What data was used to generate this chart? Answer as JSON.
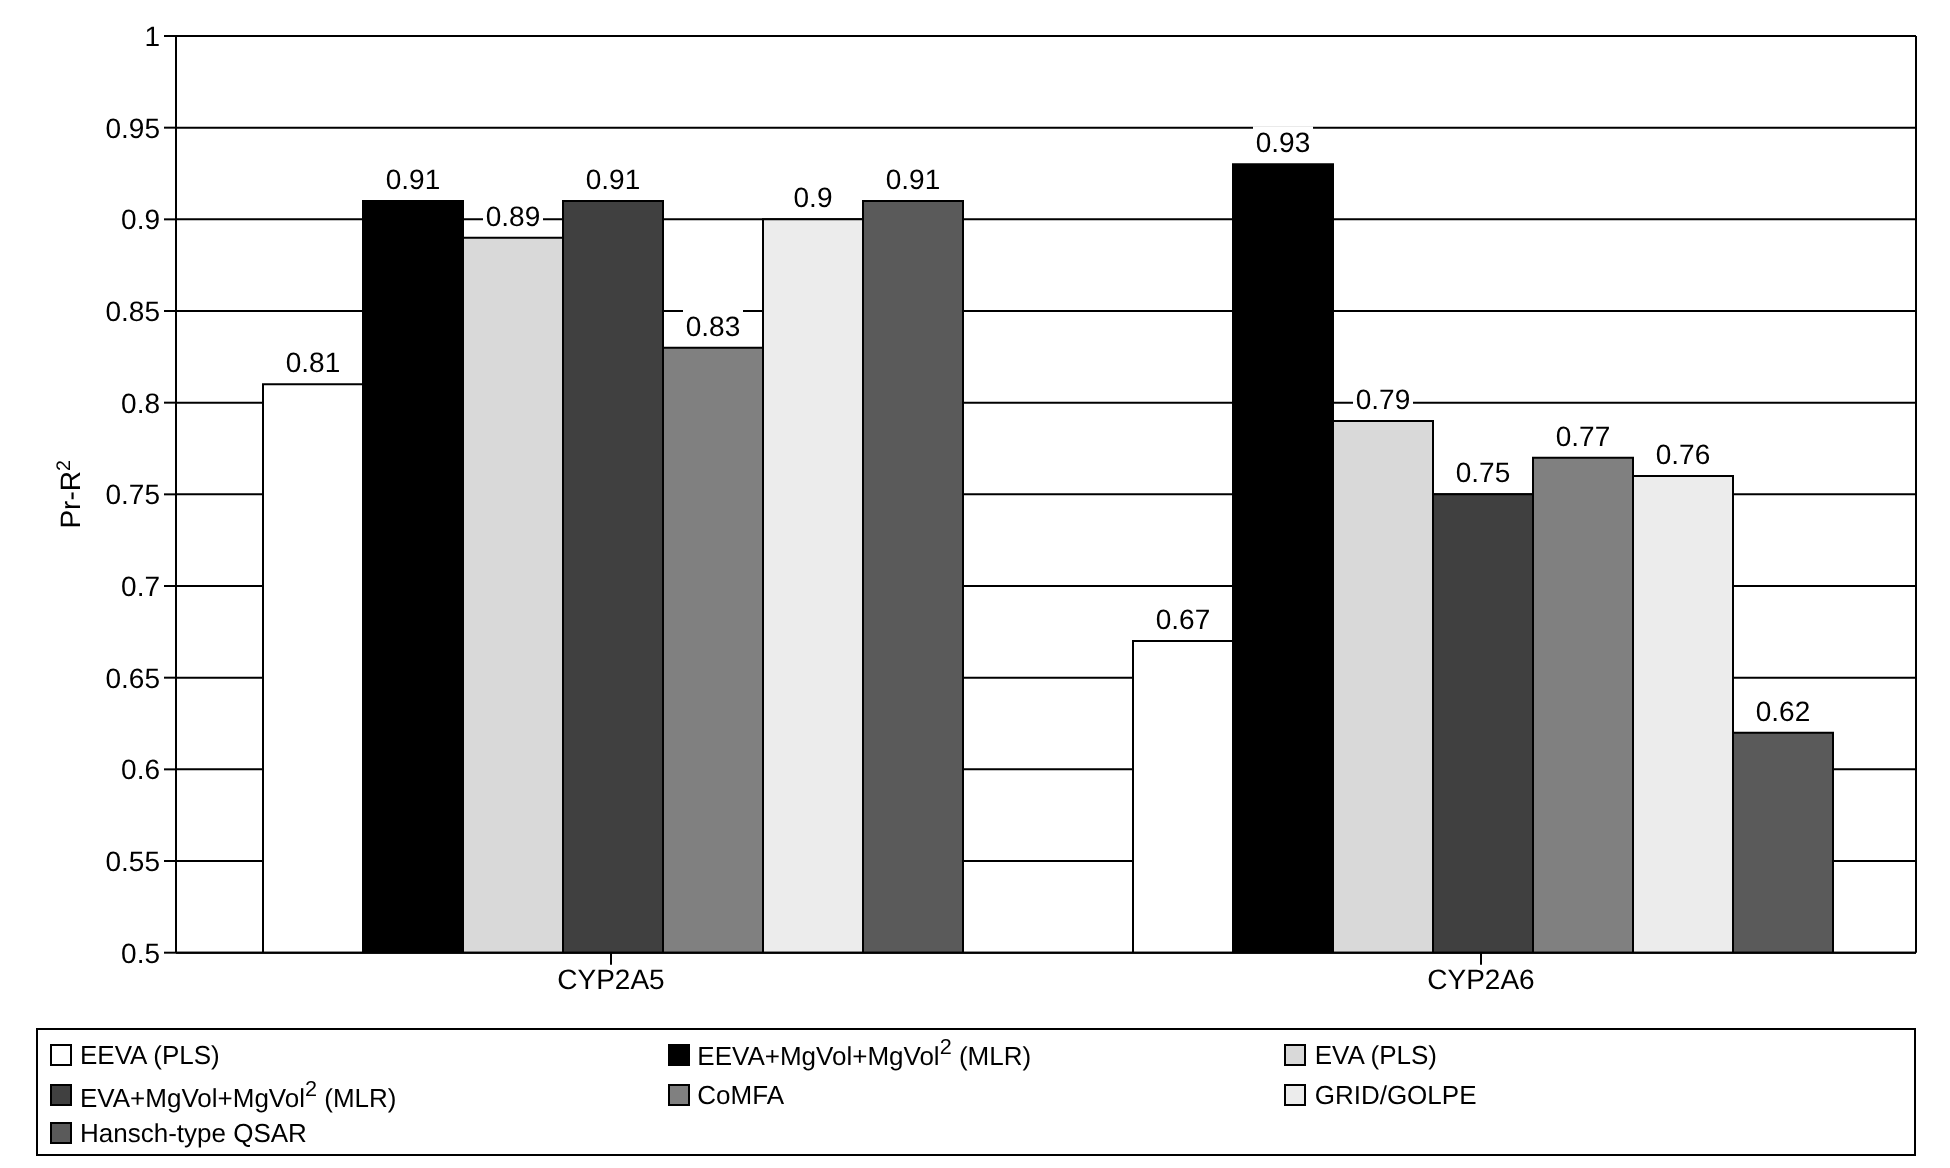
{
  "chart_data": {
    "type": "bar",
    "ylabel": "Pr-R$^{2}$",
    "categories": [
      "CYP2A5",
      "CYP2A6"
    ],
    "series": [
      {
        "name": "EEVA (PLS)",
        "color": "#ffffff",
        "values": [
          0.81,
          0.67
        ]
      },
      {
        "name": "EEVA+MgVol+MgVol$^{2}$ (MLR)",
        "color": "#000000",
        "values": [
          0.91,
          0.93
        ]
      },
      {
        "name": "EVA (PLS)",
        "color": "#d9d9d9",
        "values": [
          0.89,
          0.79
        ]
      },
      {
        "name": "EVA+MgVol+MgVol$^{2}$ (MLR)",
        "color": "#404040",
        "values": [
          0.91,
          0.75
        ]
      },
      {
        "name": "CoMFA",
        "color": "#808080",
        "values": [
          0.83,
          0.77
        ]
      },
      {
        "name": "GRID/GOLPE",
        "color": "#ececec",
        "values": [
          0.9,
          0.76
        ]
      },
      {
        "name": "Hansch-type QSAR",
        "color": "#5a5a5a",
        "values": [
          0.91,
          0.62
        ]
      }
    ],
    "ylim": [
      0.5,
      1
    ],
    "yticks": [
      0.5,
      0.55,
      0.6,
      0.65,
      0.7,
      0.75,
      0.8,
      0.85,
      0.9,
      0.95,
      1
    ],
    "grid": "y",
    "legend": "bottom",
    "data_labels": true
  }
}
